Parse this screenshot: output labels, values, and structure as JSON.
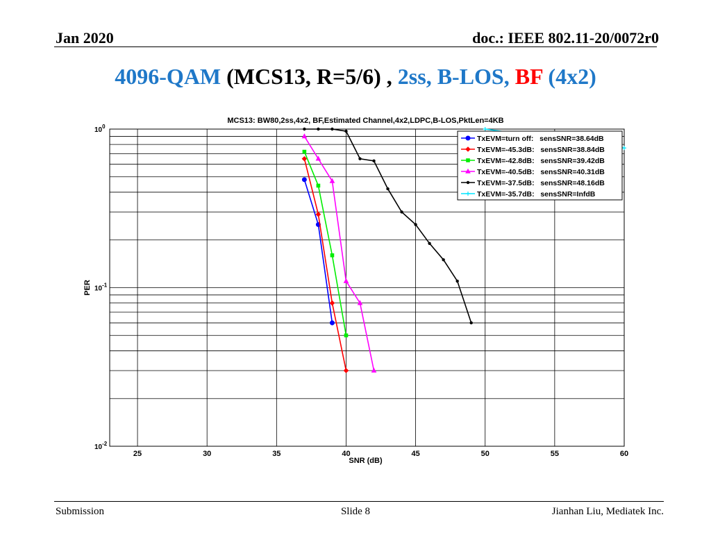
{
  "header": {
    "date": "Jan 2020",
    "doc": "doc.: IEEE 802.11-20/0072r0"
  },
  "slide_title": {
    "part1": "4096-QAM",
    "part2": " (MCS13, R=5/6) ,",
    "part3": " 2ss, B-LOS,",
    "part4": " BF",
    "part5": " (4x2)"
  },
  "footer": {
    "left": "Submission",
    "center": "Slide 8",
    "right": "Jianhan Liu, Mediatek Inc."
  },
  "chart_data": {
    "type": "line",
    "title": "MCS13: BW80,2ss,4x2, BF,Estimated Channel,4x2,LDPC,B-LOS,PktLen=4KB",
    "xlabel": "SNR (dB)",
    "ylabel": "PER",
    "xlim": [
      23,
      60
    ],
    "ylim": [
      0.01,
      1
    ],
    "yscale": "log",
    "xticks": [
      25,
      30,
      35,
      40,
      45,
      50,
      55,
      60
    ],
    "yticks": [
      {
        "value": 1,
        "base": "10",
        "exp": "0"
      },
      {
        "value": 0.1,
        "base": "10",
        "exp": "-1"
      },
      {
        "value": 0.01,
        "base": "10",
        "exp": "-2"
      }
    ],
    "grid": true,
    "legend_position": "top-right",
    "series": [
      {
        "name": "TxEVM=turn off:   sensSNR=38.64dB",
        "color": "#0000ff",
        "marker": "circle",
        "x": [
          37,
          38,
          39
        ],
        "y": [
          0.48,
          0.25,
          0.06
        ]
      },
      {
        "name": "TxEVM=-45.3dB:   sensSNR=38.84dB",
        "color": "#ff0000",
        "marker": "diamond",
        "x": [
          37,
          38,
          39,
          40
        ],
        "y": [
          0.65,
          0.29,
          0.08,
          0.03
        ]
      },
      {
        "name": "TxEVM=-42.8dB:   sensSNR=39.42dB",
        "color": "#00ee00",
        "marker": "square",
        "x": [
          37,
          38,
          39,
          40
        ],
        "y": [
          0.72,
          0.44,
          0.16,
          0.05
        ]
      },
      {
        "name": "TxEVM=-40.5dB:   sensSNR=40.31dB",
        "color": "#ff00ff",
        "marker": "triangle",
        "x": [
          37,
          38,
          39,
          40,
          41,
          42
        ],
        "y": [
          0.9,
          0.65,
          0.47,
          0.11,
          0.08,
          0.03
        ]
      },
      {
        "name": "TxEVM=-37.5dB:   sensSNR=48.16dB",
        "color": "#000000",
        "marker": "dot",
        "x": [
          37,
          38,
          39,
          40,
          41,
          42,
          43,
          44,
          45,
          46,
          47,
          48,
          49
        ],
        "y": [
          1,
          1,
          1,
          0.97,
          0.65,
          0.63,
          0.42,
          0.3,
          0.25,
          0.19,
          0.15,
          0.11,
          0.06
        ]
      },
      {
        "name": "TxEVM=-35.7dB:   sensSNR=InfdB",
        "color": "#00e5ff",
        "marker": "star",
        "x": [
          50,
          60
        ],
        "y": [
          1,
          0.76
        ]
      }
    ]
  }
}
